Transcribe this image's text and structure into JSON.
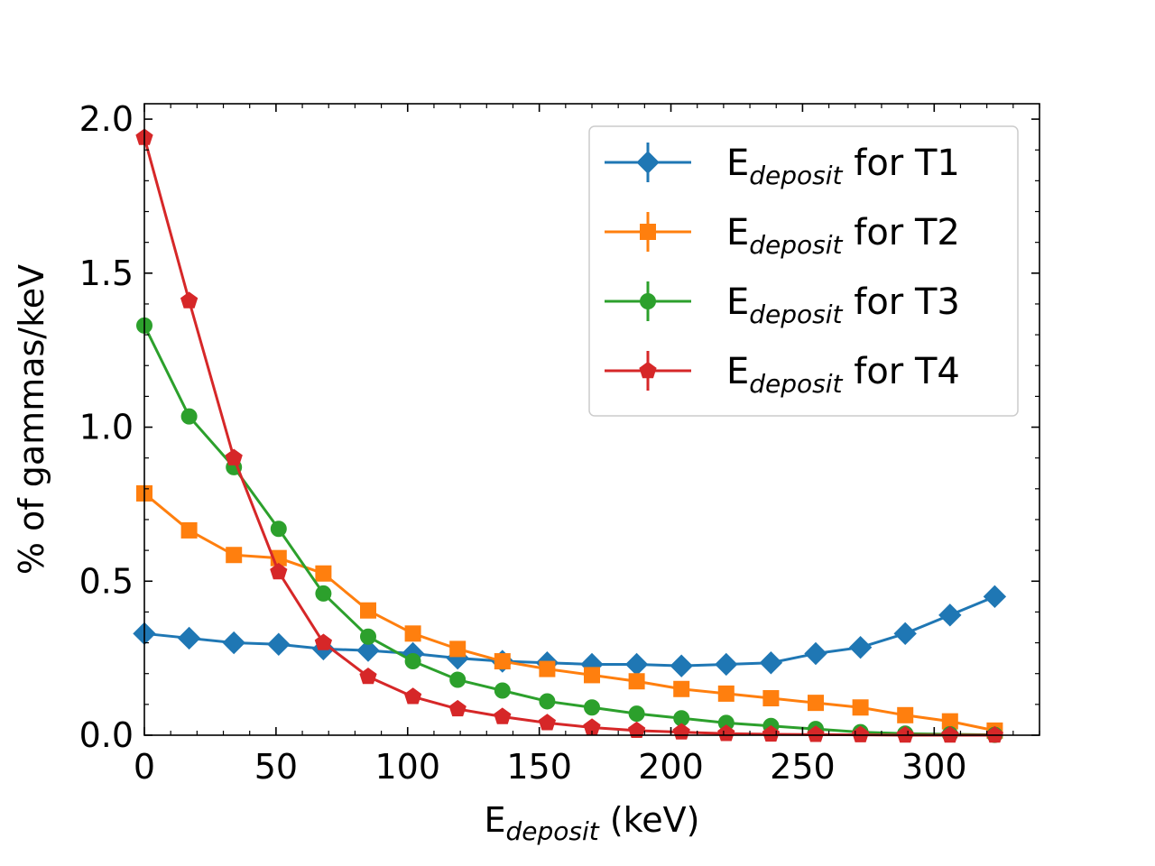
{
  "chart_data": {
    "type": "line",
    "xlabel": {
      "main": "E",
      "sub": "deposit",
      "rest": " (keV)"
    },
    "ylabel": "% of gammas/keV",
    "xlim": [
      0,
      340
    ],
    "ylim": [
      0,
      2.05
    ],
    "xticks": [
      0,
      50,
      100,
      150,
      200,
      250,
      300
    ],
    "yticks": [
      0.0,
      0.5,
      1.0,
      1.5,
      2.0
    ],
    "xtick_labels": [
      "0",
      "50",
      "100",
      "150",
      "200",
      "250",
      "300"
    ],
    "ytick_labels": [
      "0.0",
      "0.5",
      "1.0",
      "1.5",
      "2.0"
    ],
    "x": [
      0,
      17,
      34,
      51,
      68,
      85,
      102,
      119,
      136,
      153,
      170,
      187,
      204,
      221,
      238,
      255,
      272,
      289,
      306,
      323
    ],
    "legend": {
      "position": "upper-right"
    },
    "grid": false,
    "series": [
      {
        "name": {
          "main": "E",
          "sub": "deposit",
          "rest": " for T1"
        },
        "color": "#1f77b4",
        "marker": "diamond",
        "values": [
          0.33,
          0.315,
          0.3,
          0.295,
          0.28,
          0.275,
          0.265,
          0.25,
          0.24,
          0.235,
          0.23,
          0.23,
          0.225,
          0.23,
          0.235,
          0.265,
          0.285,
          0.33,
          0.39,
          0.45
        ]
      },
      {
        "name": {
          "main": "E",
          "sub": "deposit",
          "rest": " for T2"
        },
        "color": "#ff7f0e",
        "marker": "square",
        "values": [
          0.785,
          0.665,
          0.585,
          0.575,
          0.525,
          0.405,
          0.33,
          0.28,
          0.24,
          0.215,
          0.195,
          0.175,
          0.15,
          0.135,
          0.12,
          0.105,
          0.09,
          0.065,
          0.045,
          0.015
        ]
      },
      {
        "name": {
          "main": "E",
          "sub": "deposit",
          "rest": " for T3"
        },
        "color": "#2ca02c",
        "marker": "circle",
        "values": [
          1.33,
          1.035,
          0.87,
          0.67,
          0.46,
          0.32,
          0.24,
          0.18,
          0.145,
          0.11,
          0.09,
          0.07,
          0.055,
          0.04,
          0.03,
          0.02,
          0.01,
          0.005,
          0.003,
          0.001
        ]
      },
      {
        "name": {
          "main": "E",
          "sub": "deposit",
          "rest": " for T4"
        },
        "color": "#d62728",
        "marker": "pentagon",
        "values": [
          1.94,
          1.41,
          0.9,
          0.53,
          0.3,
          0.19,
          0.125,
          0.085,
          0.06,
          0.04,
          0.025,
          0.015,
          0.01,
          0.005,
          0.003,
          0.002,
          0.001,
          0.0,
          0.0,
          0.0
        ]
      }
    ]
  }
}
